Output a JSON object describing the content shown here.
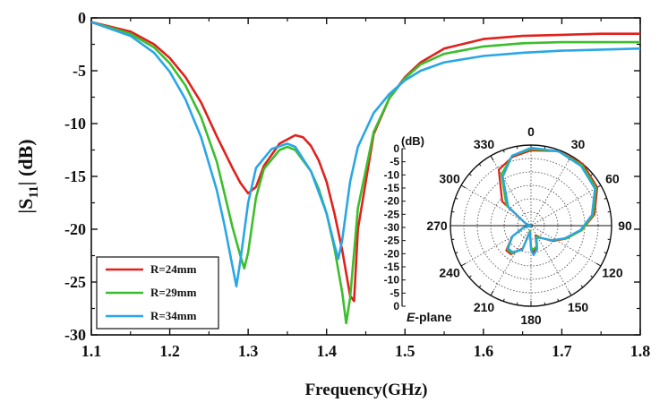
{
  "chart_data": [
    {
      "type": "line",
      "title": "",
      "xlabel": "Frequency(GHz)",
      "ylabel_main": "|S",
      "ylabel_sub": "11",
      "ylabel_tail": "| (dB)",
      "xlim": [
        1.1,
        1.8
      ],
      "ylim": [
        -30,
        0
      ],
      "x_ticks": [
        1.1,
        1.2,
        1.3,
        1.4,
        1.5,
        1.6,
        1.7,
        1.8
      ],
      "x_tick_labels": [
        "1.1",
        "1.2",
        "1.3",
        "1.4",
        "1.5",
        "1.6",
        "1.7",
        "1.8"
      ],
      "y_ticks": [
        0,
        -5,
        -10,
        -15,
        -20,
        -25,
        -30
      ],
      "y_tick_labels": [
        "0",
        "-5",
        "-10",
        "-15",
        "-20",
        "-25",
        "-30"
      ],
      "legend_position": "bottom-left",
      "series": [
        {
          "name": "R=24mm",
          "color": "#e0211c",
          "x": [
            1.1,
            1.15,
            1.18,
            1.2,
            1.22,
            1.24,
            1.26,
            1.28,
            1.29,
            1.3,
            1.31,
            1.32,
            1.34,
            1.36,
            1.37,
            1.38,
            1.39,
            1.4,
            1.41,
            1.42,
            1.43,
            1.435,
            1.44,
            1.46,
            1.48,
            1.5,
            1.52,
            1.55,
            1.6,
            1.65,
            1.7,
            1.75,
            1.8
          ],
          "y": [
            -0.4,
            -1.3,
            -2.5,
            -3.8,
            -5.6,
            -8.0,
            -11.2,
            -14.2,
            -15.6,
            -16.6,
            -16.0,
            -14.0,
            -11.9,
            -11.1,
            -11.3,
            -12.1,
            -13.5,
            -15.5,
            -18.5,
            -22.0,
            -26.3,
            -26.8,
            -20.0,
            -11.0,
            -7.6,
            -5.6,
            -4.2,
            -2.9,
            -2.0,
            -1.7,
            -1.6,
            -1.5,
            -1.5
          ]
        },
        {
          "name": "R=29mm",
          "color": "#3cbe2c",
          "x": [
            1.1,
            1.15,
            1.18,
            1.2,
            1.22,
            1.24,
            1.26,
            1.27,
            1.28,
            1.29,
            1.295,
            1.3,
            1.31,
            1.32,
            1.34,
            1.35,
            1.36,
            1.38,
            1.39,
            1.4,
            1.41,
            1.42,
            1.425,
            1.43,
            1.44,
            1.46,
            1.48,
            1.5,
            1.52,
            1.55,
            1.6,
            1.65,
            1.7,
            1.75,
            1.8
          ],
          "y": [
            -0.4,
            -1.5,
            -2.8,
            -4.3,
            -6.4,
            -9.4,
            -13.6,
            -16.7,
            -19.8,
            -22.5,
            -23.7,
            -22.2,
            -17.0,
            -14.3,
            -12.5,
            -12.2,
            -12.5,
            -14.5,
            -16.2,
            -18.5,
            -21.8,
            -26.0,
            -28.9,
            -26.5,
            -18.0,
            -10.8,
            -7.6,
            -5.7,
            -4.4,
            -3.4,
            -2.7,
            -2.4,
            -2.3,
            -2.3,
            -2.3
          ]
        },
        {
          "name": "R=34mm",
          "color": "#2aa6e6",
          "x": [
            1.1,
            1.15,
            1.18,
            1.2,
            1.22,
            1.24,
            1.26,
            1.27,
            1.28,
            1.285,
            1.29,
            1.3,
            1.31,
            1.33,
            1.35,
            1.36,
            1.38,
            1.4,
            1.41,
            1.415,
            1.42,
            1.43,
            1.44,
            1.46,
            1.48,
            1.5,
            1.52,
            1.55,
            1.6,
            1.65,
            1.7,
            1.75,
            1.8
          ],
          "y": [
            -0.4,
            -1.7,
            -3.3,
            -5.1,
            -7.7,
            -11.3,
            -16.3,
            -19.7,
            -23.5,
            -25.4,
            -23.0,
            -17.5,
            -14.2,
            -12.4,
            -11.9,
            -12.2,
            -14.5,
            -18.5,
            -21.5,
            -22.8,
            -21.0,
            -15.5,
            -12.2,
            -9.0,
            -7.2,
            -5.9,
            -5.0,
            -4.2,
            -3.6,
            -3.3,
            -3.1,
            -3.0,
            -2.9
          ]
        }
      ]
    },
    {
      "type": "polar",
      "title": "E-plane",
      "title_italic_part": "E",
      "title_rest": "-plane",
      "unit_label": "(dB)",
      "radial_range": [
        -30,
        0
      ],
      "radial_tick_labels": [
        "0",
        "-5",
        "-10",
        "-15",
        "-20",
        "-25",
        "-30",
        "-25",
        "-20",
        "-15",
        "-10",
        "-5",
        "0"
      ],
      "angle_labels": [
        "0",
        "30",
        "60",
        "90",
        "120",
        "150",
        "180",
        "210",
        "240",
        "270",
        "300",
        "330"
      ],
      "angles_deg": [
        0,
        20,
        40,
        60,
        80,
        95,
        110,
        125,
        140,
        155,
        165,
        175,
        180,
        190,
        200,
        215,
        225,
        240,
        255,
        270,
        290,
        310,
        330,
        345,
        360
      ],
      "series": [
        {
          "name": "R=24mm",
          "color": "#e0211c",
          "values_db": [
            -2.0,
            -0.5,
            0.0,
            -1.5,
            -6.0,
            -11.0,
            -16.0,
            -20.0,
            -24.0,
            -26.0,
            -22.0,
            -20.0,
            -22.0,
            -28.0,
            -21.0,
            -17.0,
            -17.0,
            -22.0,
            -27.0,
            -30.0,
            -28.0,
            -16.0,
            -6.0,
            -3.5,
            -2.0
          ]
        },
        {
          "name": "R=29mm",
          "color": "#3cbe2c",
          "values_db": [
            -1.5,
            -0.5,
            -0.5,
            -2.0,
            -6.5,
            -11.0,
            -16.0,
            -20.5,
            -24.0,
            -25.5,
            -22.0,
            -21.0,
            -22.0,
            -28.0,
            -20.5,
            -17.5,
            -17.5,
            -22.0,
            -27.0,
            -30.0,
            -28.0,
            -18.0,
            -8.0,
            -3.0,
            -1.5
          ]
        },
        {
          "name": "R=34mm",
          "color": "#2aa6e6",
          "values_db": [
            -1.0,
            -0.5,
            -1.0,
            -2.5,
            -7.0,
            -11.5,
            -16.5,
            -20.5,
            -24.0,
            -25.0,
            -21.0,
            -19.0,
            -21.0,
            -27.5,
            -20.5,
            -18.0,
            -18.0,
            -22.0,
            -27.0,
            -30.0,
            -28.0,
            -19.0,
            -9.0,
            -3.0,
            -1.0
          ]
        }
      ]
    }
  ]
}
